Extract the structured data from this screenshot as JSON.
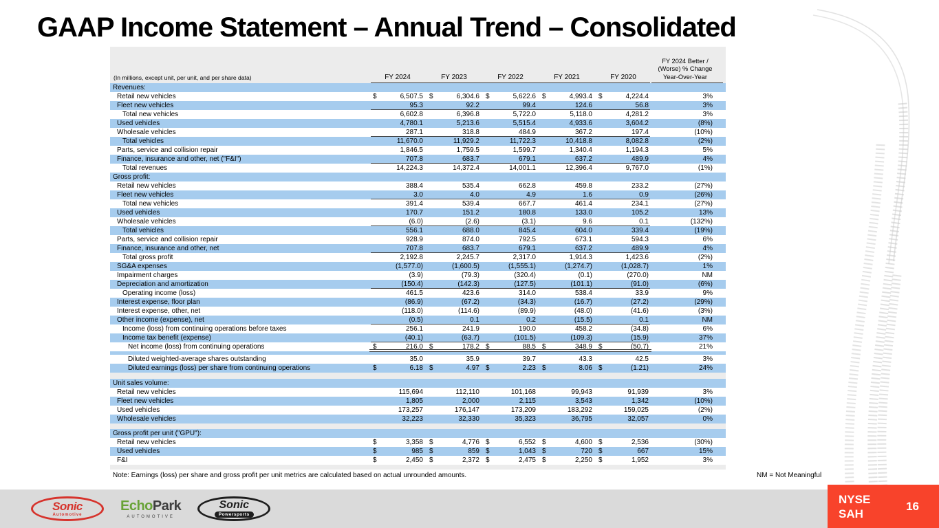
{
  "slide": {
    "title": "GAAP Income Statement – Annual Trend – Consolidated"
  },
  "table": {
    "unit_note": "(In millions, except unit, per unit, and per share data)",
    "columns": [
      "FY 2024",
      "FY 2023",
      "FY 2022",
      "FY 2021",
      "FY 2020"
    ],
    "change_header_lines": [
      "FY 2024 Better /",
      "(Worse) % Change",
      "Year-Over-Year"
    ],
    "sections": [
      {
        "rows": [
          {
            "label": "Revenues:",
            "header": true,
            "shade": "blue",
            "indent": 0
          },
          {
            "label": "Retail new vehicles",
            "shade": "white",
            "indent": 1,
            "dollar": true,
            "values": [
              "6,507.5",
              "6,304.6",
              "5,622.6",
              "4,993.4",
              "4,224.4"
            ],
            "pct": "3%"
          },
          {
            "label": "Fleet new vehicles",
            "shade": "blue",
            "indent": 1,
            "values": [
              "95.3",
              "92.2",
              "99.4",
              "124.6",
              "56.8"
            ],
            "pct": "3%",
            "rule": "single"
          },
          {
            "label": "Total new vehicles",
            "shade": "white",
            "indent": 2,
            "values": [
              "6,602.8",
              "6,396.8",
              "5,722.0",
              "5,118.0",
              "4,281.2"
            ],
            "pct": "3%"
          },
          {
            "label": "Used vehicles",
            "shade": "blue",
            "indent": 1,
            "values": [
              "4,780.1",
              "5,213.6",
              "5,515.4",
              "4,933.6",
              "3,604.2"
            ],
            "pct": "(8%)"
          },
          {
            "label": "Wholesale vehicles",
            "shade": "white",
            "indent": 1,
            "values": [
              "287.1",
              "318.8",
              "484.9",
              "367.2",
              "197.4"
            ],
            "pct": "(10%)",
            "rule": "single"
          },
          {
            "label": "Total vehicles",
            "shade": "blue",
            "indent": 2,
            "values": [
              "11,670.0",
              "11,929.2",
              "11,722.3",
              "10,418.8",
              "8,082.8"
            ],
            "pct": "(2%)"
          },
          {
            "label": "Parts, service and collision repair",
            "shade": "white",
            "indent": 1,
            "values": [
              "1,846.5",
              "1,759.5",
              "1,599.7",
              "1,340.4",
              "1,194.3"
            ],
            "pct": "5%"
          },
          {
            "label": "Finance, insurance and other, net (\"F&I\")",
            "shade": "blue",
            "indent": 1,
            "values": [
              "707.8",
              "683.7",
              "679.1",
              "637.2",
              "489.9"
            ],
            "pct": "4%",
            "rule": "single"
          },
          {
            "label": "Total revenues",
            "shade": "white",
            "indent": 2,
            "values": [
              "14,224.3",
              "14,372.4",
              "14,001.1",
              "12,396.4",
              "9,767.0"
            ],
            "pct": "(1%)"
          },
          {
            "label": "Gross profit:",
            "header": true,
            "shade": "blue",
            "indent": 0
          },
          {
            "label": "Retail new vehicles",
            "shade": "white",
            "indent": 1,
            "values": [
              "388.4",
              "535.4",
              "662.8",
              "459.8",
              "233.2"
            ],
            "pct": "(27%)"
          },
          {
            "label": "Fleet new vehicles",
            "shade": "blue",
            "indent": 1,
            "values": [
              "3.0",
              "4.0",
              "4.9",
              "1.6",
              "0.9"
            ],
            "pct": "(26%)",
            "rule": "single"
          },
          {
            "label": "Total new vehicles",
            "shade": "white",
            "indent": 2,
            "values": [
              "391.4",
              "539.4",
              "667.7",
              "461.4",
              "234.1"
            ],
            "pct": "(27%)"
          },
          {
            "label": "Used vehicles",
            "shade": "blue",
            "indent": 1,
            "values": [
              "170.7",
              "151.2",
              "180.8",
              "133.0",
              "105.2"
            ],
            "pct": "13%"
          },
          {
            "label": "Wholesale vehicles",
            "shade": "white",
            "indent": 1,
            "values": [
              "(6.0)",
              "(2.6)",
              "(3.1)",
              "9.6",
              "0.1"
            ],
            "pct": "(132%)",
            "rule": "single"
          },
          {
            "label": "Total vehicles",
            "shade": "blue",
            "indent": 2,
            "values": [
              "556.1",
              "688.0",
              "845.4",
              "604.0",
              "339.4"
            ],
            "pct": "(19%)"
          },
          {
            "label": "Parts, service and collision repair",
            "shade": "white",
            "indent": 1,
            "values": [
              "928.9",
              "874.0",
              "792.5",
              "673.1",
              "594.3"
            ],
            "pct": "6%"
          },
          {
            "label": "Finance, insurance and other, net",
            "shade": "blue",
            "indent": 1,
            "values": [
              "707.8",
              "683.7",
              "679.1",
              "637.2",
              "489.9"
            ],
            "pct": "4%",
            "rule": "single"
          },
          {
            "label": "Total gross profit",
            "shade": "white",
            "indent": 2,
            "values": [
              "2,192.8",
              "2,245.7",
              "2,317.0",
              "1,914.3",
              "1,423.6"
            ],
            "pct": "(2%)"
          },
          {
            "label": "SG&A expenses",
            "shade": "blue",
            "indent": 1,
            "values": [
              "(1,577.0)",
              "(1,600.5)",
              "(1,555.1)",
              "(1,274.7)",
              "(1,028.7)"
            ],
            "pct": "1%"
          },
          {
            "label": "Impairment charges",
            "shade": "white",
            "indent": 1,
            "values": [
              "(3.9)",
              "(79.3)",
              "(320.4)",
              "(0.1)",
              "(270.0)"
            ],
            "pct": "NM"
          },
          {
            "label": "Depreciation and amortization",
            "shade": "blue",
            "indent": 1,
            "values": [
              "(150.4)",
              "(142.3)",
              "(127.5)",
              "(101.1)",
              "(91.0)"
            ],
            "pct": "(6%)",
            "rule": "single"
          },
          {
            "label": "Operating income (loss)",
            "shade": "white",
            "indent": 2,
            "values": [
              "461.5",
              "423.6",
              "314.0",
              "538.4",
              "33.9"
            ],
            "pct": "9%"
          },
          {
            "label": "Interest expense, floor plan",
            "shade": "blue",
            "indent": 1,
            "values": [
              "(86.9)",
              "(67.2)",
              "(34.3)",
              "(16.7)",
              "(27.2)"
            ],
            "pct": "(29%)"
          },
          {
            "label": "Interest expense, other, net",
            "shade": "white",
            "indent": 1,
            "values": [
              "(118.0)",
              "(114.6)",
              "(89.9)",
              "(48.0)",
              "(41.6)"
            ],
            "pct": "(3%)"
          },
          {
            "label": "Other income (expense), net",
            "shade": "blue",
            "indent": 1,
            "values": [
              "(0.5)",
              "0.1",
              "0.2",
              "(15.5)",
              "0.1"
            ],
            "pct": "NM",
            "rule": "single"
          },
          {
            "label": "Income (loss) from continuing operations before taxes",
            "shade": "white",
            "indent": 2,
            "values": [
              "256.1",
              "241.9",
              "190.0",
              "458.2",
              "(34.8)"
            ],
            "pct": "6%"
          },
          {
            "label": "Income tax benefit (expense)",
            "shade": "blue",
            "indent": 2,
            "values": [
              "(40.1)",
              "(63.7)",
              "(101.5)",
              "(109.3)",
              "(15.9)"
            ],
            "pct": "37%",
            "rule": "single"
          },
          {
            "label": "Net income (loss) from continuing operations",
            "shade": "white",
            "indent": 3,
            "dollar": true,
            "values": [
              "216.0",
              "178.2",
              "88.5",
              "348.9",
              "(50.7)"
            ],
            "pct": "21%",
            "rule": "double"
          }
        ]
      },
      {
        "rows": [
          {
            "label": "Diluted weighted-average shares outstanding",
            "shade": "white",
            "indent": 3,
            "values": [
              "35.0",
              "35.9",
              "39.7",
              "43.3",
              "42.5"
            ],
            "pct": "3%"
          },
          {
            "label": "Diluted earnings (loss) per share from continuing operations",
            "shade": "blue",
            "indent": 3,
            "dollar": true,
            "values": [
              "6.18",
              "4.97",
              "2.23",
              "8.06",
              "(1.21)"
            ],
            "pct": "24%"
          }
        ]
      },
      {
        "rows": [
          {
            "label": "Unit sales volume:",
            "header": true,
            "shade": "blue",
            "indent": 0
          },
          {
            "label": "Retail new vehicles",
            "shade": "white",
            "indent": 1,
            "values": [
              "115,694",
              "112,110",
              "101,168",
              "99,943",
              "91,939"
            ],
            "pct": "3%"
          },
          {
            "label": "Fleet new vehicles",
            "shade": "blue",
            "indent": 1,
            "values": [
              "1,805",
              "2,000",
              "2,115",
              "3,543",
              "1,342"
            ],
            "pct": "(10%)"
          },
          {
            "label": "Used vehicles",
            "shade": "white",
            "indent": 1,
            "values": [
              "173,257",
              "176,147",
              "173,209",
              "183,292",
              "159,025"
            ],
            "pct": "(2%)"
          },
          {
            "label": "Wholesale vehicles",
            "shade": "blue",
            "indent": 1,
            "values": [
              "32,223",
              "32,330",
              "35,323",
              "36,795",
              "32,057"
            ],
            "pct": "0%"
          }
        ]
      },
      {
        "rows": [
          {
            "label": "Gross profit per unit (\"GPU\"):",
            "header": true,
            "shade": "blue",
            "indent": 0
          },
          {
            "label": "Retail new vehicles",
            "shade": "white",
            "indent": 1,
            "dollar": true,
            "values": [
              "3,358",
              "4,776",
              "6,552",
              "4,600",
              "2,536"
            ],
            "pct": "(30%)"
          },
          {
            "label": "Used vehicles",
            "shade": "blue",
            "indent": 1,
            "dollar": true,
            "values": [
              "985",
              "859",
              "1,043",
              "720",
              "667"
            ],
            "pct": "15%"
          },
          {
            "label": "F&I",
            "shade": "white",
            "indent": 1,
            "dollar": true,
            "values": [
              "2,450",
              "2,372",
              "2,475",
              "2,250",
              "1,952"
            ],
            "pct": "3%"
          }
        ]
      }
    ]
  },
  "footnote": {
    "note": "Note: Earnings (loss) per share and gross profit per unit metrics are calculated based on actual unrounded amounts.",
    "nm": "NM = Not Meaningful"
  },
  "footer": {
    "logos": {
      "sonic_automotive": {
        "word": "Sonic",
        "sub": "Automotive"
      },
      "echopark": {
        "word_green": "Echo",
        "word_dark": "Park",
        "sub": "AUTOMOTIVE"
      },
      "sonic_powersports": {
        "word": "Sonic",
        "sub": "Powersports"
      }
    },
    "ticker": {
      "exchange": "NYSE",
      "symbol": "SAH"
    },
    "page": "16"
  },
  "colors": {
    "row_blue": "#A6CCEE",
    "table_bg": "#ECECEC",
    "badge_red": "#F8432B",
    "footer_gray": "#DADADA",
    "sonic_red": "#D6332C",
    "echopark_green": "#69A338"
  }
}
